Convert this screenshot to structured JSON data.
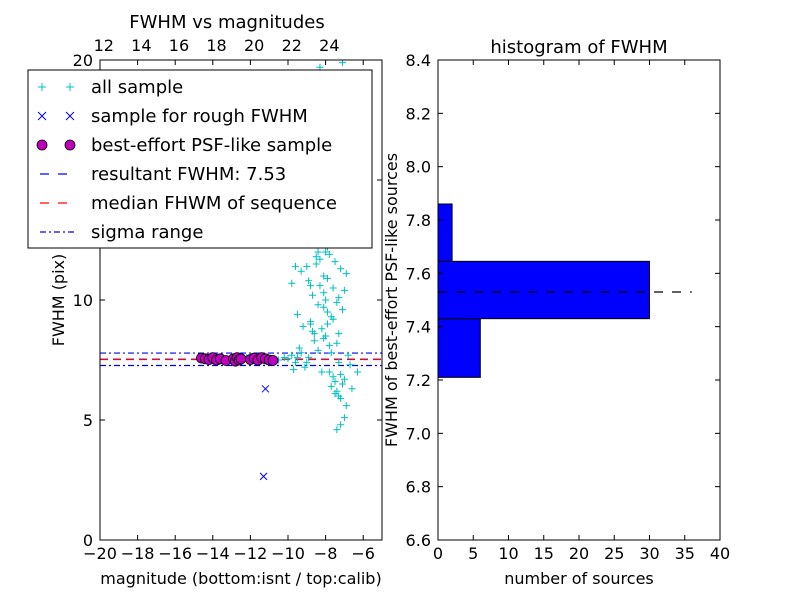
{
  "chart_data": [
    {
      "type": "scatter",
      "title": "FWHM vs magnitudes",
      "xlabel": "magnitude (bottom:isnt / top:calib)",
      "ylabel": "FWHM (pix)",
      "xlim": [
        -20,
        -5
      ],
      "ylim": [
        0,
        20
      ],
      "xticks": [
        -20,
        -18,
        -16,
        -14,
        -12,
        -10,
        -8,
        -6
      ],
      "xtick_labels": [
        "−20",
        "−18",
        "−16",
        "−14",
        "−12",
        "−10",
        "−8",
        "−6"
      ],
      "yticks": [
        0,
        5,
        10,
        15,
        20
      ],
      "ytick_labels": [
        "0",
        "5",
        "10",
        "15",
        "20"
      ],
      "top_axis": {
        "ticks": [
          12,
          14,
          16,
          18,
          20,
          22,
          24
        ],
        "tick_labels": [
          "12",
          "14",
          "16",
          "18",
          "20",
          "22",
          "24"
        ],
        "offset": 31.8
      },
      "legend": {
        "position": "upper-left",
        "entries": [
          {
            "label": "all sample",
            "marker": "+",
            "color": "#00bfbf"
          },
          {
            "label": "sample for rough FWHM",
            "marker": "x",
            "color": "#0000ff"
          },
          {
            "label": "best-effort PSF-like sample",
            "marker": "o",
            "color": "#bf00bf"
          },
          {
            "label": "resultant FWHM: 7.53",
            "marker": "dash",
            "color": "#0000ff"
          },
          {
            "label": "median FHWM of sequence",
            "marker": "dash",
            "color": "#ff0000"
          },
          {
            "label": "sigma range",
            "marker": "dashdot",
            "color": "#0000ff"
          }
        ]
      },
      "series": [
        {
          "name": "all sample",
          "marker": "+",
          "color": "#00bfbf",
          "x": [
            -14.6,
            -14.3,
            -14.0,
            -13.8,
            -13.5,
            -13.0,
            -12.8,
            -12.2,
            -11.9,
            -11.5,
            -11.1,
            -10.8,
            -10.5,
            -10.2,
            -10.0,
            -9.8,
            -9.6,
            -9.5,
            -9.3,
            -9.2,
            -9.0,
            -8.9,
            -8.8,
            -8.7,
            -8.6,
            -8.5,
            -8.5,
            -8.4,
            -8.3,
            -8.3,
            -8.2,
            -8.1,
            -8.0,
            -8.0,
            -7.9,
            -7.9,
            -7.8,
            -7.8,
            -7.7,
            -7.7,
            -7.6,
            -7.6,
            -7.5,
            -7.5,
            -7.4,
            -7.4,
            -7.3,
            -7.3,
            -7.2,
            -7.2,
            -7.1,
            -7.0,
            -6.9,
            -6.8,
            -6.7,
            -9.7,
            -9.4,
            -9.1,
            -8.8,
            -8.6,
            -8.4,
            -8.2,
            -8.0,
            -7.8,
            -7.6,
            -7.5,
            -7.3,
            -7.1,
            -9.5,
            -8.9,
            -8.3,
            -7.9,
            -7.5,
            -7.2,
            -9.0,
            -8.6,
            -8.1,
            -7.7,
            -7.4,
            -7.0,
            -8.8,
            -8.2,
            -7.8,
            -7.4,
            -9.8,
            -9.3,
            -8.7,
            -8.1,
            -7.6,
            -7.3,
            -8.5,
            -8.0,
            -7.7,
            -7.3,
            -7.6,
            -7.9,
            -8.4,
            -7.5,
            -7.2,
            -8.3,
            -7.1,
            -6.9,
            -7.4,
            -7.2,
            -7.0,
            -6.3,
            -6.6,
            -6.9,
            -8.4,
            -9.6,
            -8.8,
            -7.9,
            -8.1,
            -7.7
          ],
          "y": [
            7.55,
            7.6,
            7.5,
            7.55,
            7.5,
            7.55,
            7.5,
            7.6,
            7.55,
            7.5,
            7.6,
            7.55,
            7.5,
            7.6,
            7.55,
            7.7,
            7.4,
            7.6,
            7.8,
            8.9,
            7.4,
            7.6,
            9.0,
            10.2,
            8.3,
            11.5,
            12.7,
            9.8,
            10.6,
            13.2,
            8.8,
            11.0,
            12.0,
            13.8,
            9.5,
            10.9,
            8.1,
            11.9,
            12.6,
            13.5,
            9.2,
            10.5,
            11.6,
            12.3,
            9.9,
            13.0,
            8.6,
            10.1,
            11.3,
            12.8,
            9.6,
            10.4,
            11.1,
            7.7,
            7.3,
            7.1,
            8.0,
            7.2,
            9.1,
            8.6,
            7.9,
            7.0,
            8.5,
            7.0,
            6.8,
            6.6,
            7.4,
            6.5,
            9.4,
            10.8,
            11.7,
            12.2,
            13.6,
            6.9,
            11.4,
            12.9,
            10.3,
            9.3,
            8.2,
            6.7,
            12.5,
            14.5,
            13.1,
            6.2,
            10.7,
            11.2,
            8.7,
            9.7,
            14.0,
            6.0,
            11.8,
            10.0,
            6.4,
            15.3,
            13.8,
            12.4,
            14.9,
            6.1,
            5.9,
            19.7,
            19.9,
            5.6,
            4.6,
            4.8,
            5.1,
            7.0,
            6.3,
            14.2,
            12.0,
            11.4,
            10.6,
            9.0,
            8.4,
            7.8
          ]
        },
        {
          "name": "sample for rough FWHM",
          "marker": "x",
          "color": "#0000ff",
          "x": [
            -11.2,
            -11.3,
            -14.6,
            -14.1,
            -13.6,
            -12.9,
            -12.3,
            -11.7,
            -10.9
          ],
          "y": [
            6.3,
            2.65,
            7.6,
            7.55,
            7.5,
            7.55,
            7.5,
            7.6,
            7.5
          ]
        },
        {
          "name": "best-effort PSF-like sample",
          "marker": "o",
          "color": "#bf00bf",
          "x": [
            -14.6,
            -14.4,
            -14.2,
            -14.0,
            -13.8,
            -13.6,
            -13.3,
            -12.9,
            -12.8,
            -12.7,
            -12.6,
            -12.5,
            -12.0,
            -11.8,
            -11.6,
            -11.4,
            -11.2,
            -11.0,
            -10.8
          ],
          "y": [
            7.58,
            7.55,
            7.52,
            7.6,
            7.5,
            7.55,
            7.48,
            7.55,
            7.45,
            7.6,
            7.5,
            7.55,
            7.52,
            7.58,
            7.5,
            7.6,
            7.55,
            7.5,
            7.48
          ]
        }
      ],
      "lines": [
        {
          "name": "resultant FWHM: 7.53",
          "y": 7.53,
          "style": "dashed",
          "color": "#0000ff"
        },
        {
          "name": "median FHWM of sequence",
          "y": 7.52,
          "style": "dashed",
          "color": "#ff0000"
        },
        {
          "name": "sigma range",
          "y": 7.27,
          "style": "dashdot",
          "color": "#0000ff"
        },
        {
          "name": "sigma range",
          "y": 7.79,
          "style": "dashdot",
          "color": "#0000ff"
        }
      ]
    },
    {
      "type": "bar",
      "orientation": "horizontal",
      "title": "histogram of FWHM",
      "xlabel": "number of sources",
      "ylabel": "FWHM of best-effort PSF-like sources",
      "xlim": [
        0,
        40
      ],
      "ylim": [
        6.6,
        8.4
      ],
      "xticks": [
        0,
        5,
        10,
        15,
        20,
        25,
        30,
        35,
        40
      ],
      "xtick_labels": [
        "0",
        "5",
        "10",
        "15",
        "20",
        "25",
        "30",
        "35",
        "40"
      ],
      "yticks": [
        6.6,
        6.8,
        7.0,
        7.2,
        7.4,
        7.6,
        7.8,
        8.0,
        8.2,
        8.4
      ],
      "ytick_labels": [
        "6.6",
        "6.8",
        "7.0",
        "7.2",
        "7.4",
        "7.6",
        "7.8",
        "8.0",
        "8.2",
        "8.4"
      ],
      "bins": [
        {
          "low": 7.21,
          "high": 7.43,
          "count": 6
        },
        {
          "low": 7.43,
          "high": 7.645,
          "count": 30
        },
        {
          "low": 7.645,
          "high": 7.86,
          "count": 2
        }
      ],
      "bar_color": "#0000ff",
      "reference_line": {
        "y": 7.53,
        "x_end": 36,
        "style": "dashed",
        "color": "#000000"
      }
    }
  ]
}
